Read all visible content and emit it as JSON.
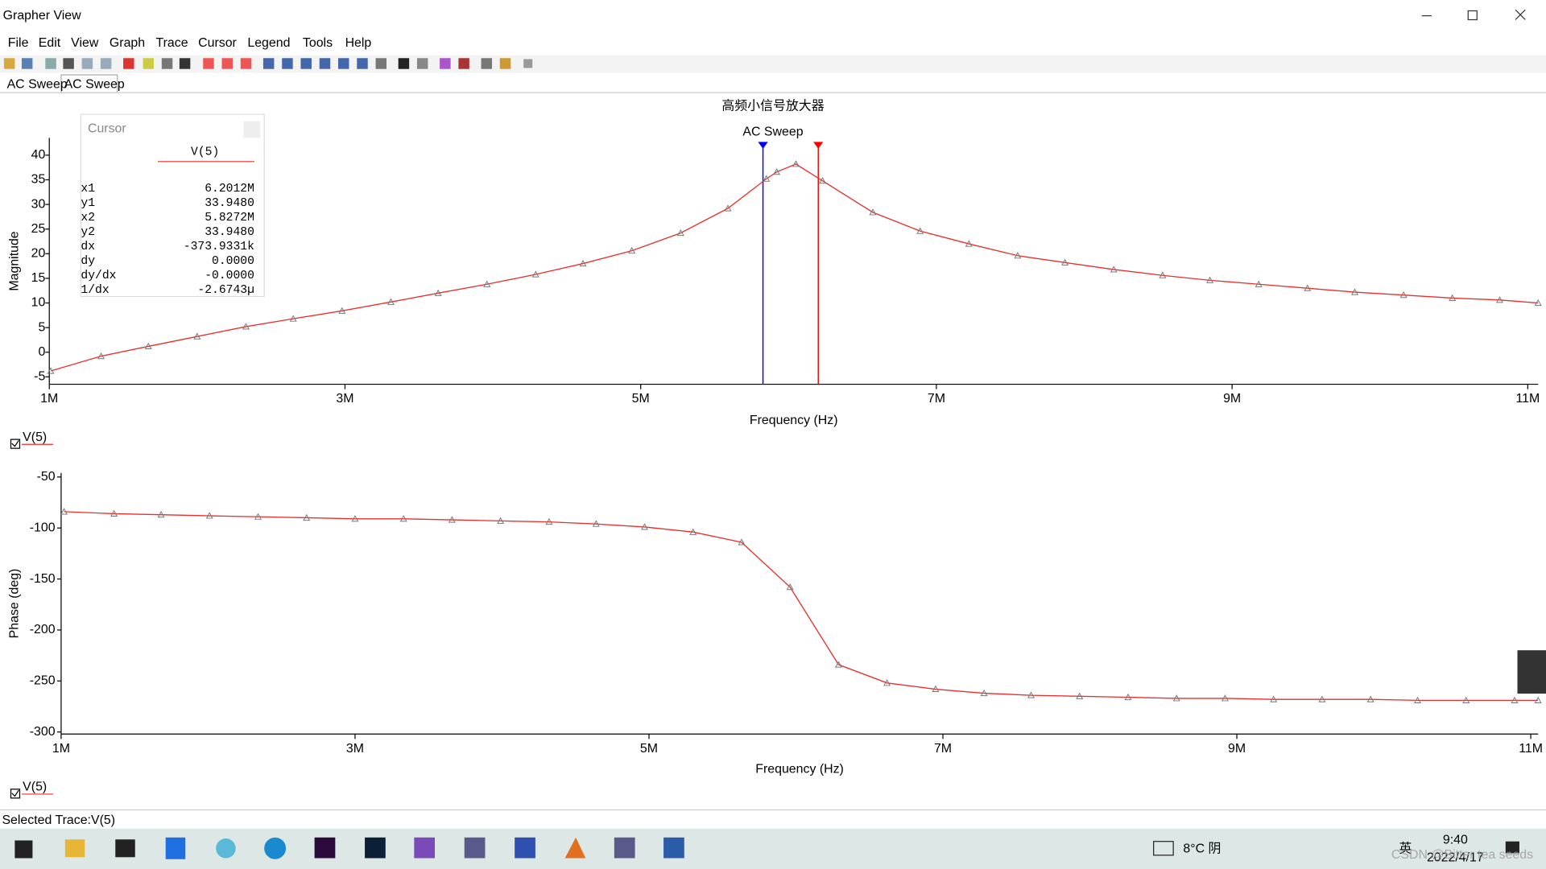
{
  "window": {
    "title": "Grapher View"
  },
  "menu": [
    "File",
    "Edit",
    "View",
    "Graph",
    "Trace",
    "Cursor",
    "Legend",
    "Tools",
    "Help"
  ],
  "tabs": [
    "AC Sweep",
    "AC Sweep"
  ],
  "cursor_panel": {
    "title": "Cursor",
    "trace": "V(5)",
    "rows": [
      [
        "x1",
        "6.2012M"
      ],
      [
        "y1",
        "33.9480"
      ],
      [
        "x2",
        "5.8272M"
      ],
      [
        "y2",
        "33.9480"
      ],
      [
        "dx",
        "-373.9331k"
      ],
      [
        "dy",
        "0.0000"
      ],
      [
        "dy/dx",
        "-0.0000"
      ],
      [
        "1/dx",
        "-2.6743µ"
      ]
    ]
  },
  "chart_data": [
    {
      "type": "line",
      "title": "高频小信号放大器",
      "subtitle": "AC Sweep",
      "x_label": "Frequency (Hz)",
      "y_label": "Magnitude",
      "x": [
        1010000,
        1350000,
        1670000,
        2000000,
        2330000,
        2650000,
        2980000,
        3310000,
        3630000,
        3960000,
        4290000,
        4610000,
        4940000,
        5270000,
        5590000,
        5850000,
        5920000,
        6050000,
        6230000,
        6570000,
        6890000,
        7220000,
        7550000,
        7870000,
        8200000,
        8530000,
        8850000,
        9180000,
        9510000,
        9830000,
        10160000,
        10490000,
        10810000,
        11070000
      ],
      "series": [
        {
          "name": "V(5)",
          "color": "#e8302c",
          "values": [
            -3.8,
            -0.8,
            1.2,
            3.2,
            5.2,
            6.8,
            8.4,
            10.2,
            12,
            13.8,
            15.8,
            18,
            20.6,
            24.2,
            29.2,
            35.2,
            36.6,
            38.2,
            34.8,
            28.4,
            24.6,
            22,
            19.6,
            18.2,
            16.8,
            15.6,
            14.6,
            13.8,
            13,
            12.2,
            11.6,
            11,
            10.6,
            10
          ]
        }
      ],
      "xlim": [
        1000000,
        11070000
      ],
      "xticks": [
        {
          "value": 1000000,
          "label": "1M"
        },
        {
          "value": 3000000,
          "label": "3M"
        },
        {
          "value": 5000000,
          "label": "5M"
        },
        {
          "value": 7000000,
          "label": "7M"
        },
        {
          "value": 9000000,
          "label": "9M"
        },
        {
          "value": 11000000,
          "label": "11M"
        }
      ],
      "ylim": [
        -6.5,
        43.5
      ],
      "yticks": [
        -5,
        0,
        5,
        10,
        15,
        20,
        25,
        30,
        35,
        40
      ],
      "cursors": [
        {
          "x": 6201200,
          "color": "#ff0000"
        },
        {
          "x": 5827200,
          "color": "#0000ff"
        }
      ]
    },
    {
      "type": "line",
      "x_label": "Frequency (Hz)",
      "y_label": "Phase (deg)",
      "x": [
        1020000,
        1360000,
        1680000,
        2010000,
        2340000,
        2670000,
        3000000,
        3330000,
        3660000,
        3990000,
        4320000,
        4640000,
        4970000,
        5300000,
        5630000,
        5960000,
        6290000,
        6620000,
        6950000,
        7280000,
        7600000,
        7930000,
        8260000,
        8590000,
        8920000,
        9250000,
        9580000,
        9910000,
        10230000,
        10560000,
        10890000,
        11050000
      ],
      "series": [
        {
          "name": "V(5)",
          "color": "#e8302c",
          "values": [
            -84,
            -86,
            -87,
            -88,
            -89,
            -90,
            -91,
            -91,
            -92,
            -93,
            -94,
            -96,
            -99,
            -104,
            -114,
            -158,
            -234,
            -252,
            -258,
            -262,
            -264,
            -265,
            -266,
            -267,
            -267,
            -268,
            -268,
            -268,
            -269,
            -269,
            -269,
            -269
          ]
        }
      ],
      "xlim": [
        1000000,
        11050000
      ],
      "xticks": [
        {
          "value": 1000000,
          "label": "1M"
        },
        {
          "value": 3000000,
          "label": "3M"
        },
        {
          "value": 5000000,
          "label": "5M"
        },
        {
          "value": 7000000,
          "label": "7M"
        },
        {
          "value": 9000000,
          "label": "9M"
        },
        {
          "value": 11000000,
          "label": "11M"
        }
      ],
      "ylim": [
        -302,
        -46
      ],
      "yticks": [
        -50,
        -100,
        -150,
        -200,
        -250,
        -300
      ]
    }
  ],
  "status_bar": "Selected Trace:V(5)",
  "taskbar": {
    "weather": "8°C 阴",
    "ime": "英",
    "time": "9:40",
    "date": "2022/4/17"
  },
  "watermark": "CSDN @Bitter tea seeds"
}
